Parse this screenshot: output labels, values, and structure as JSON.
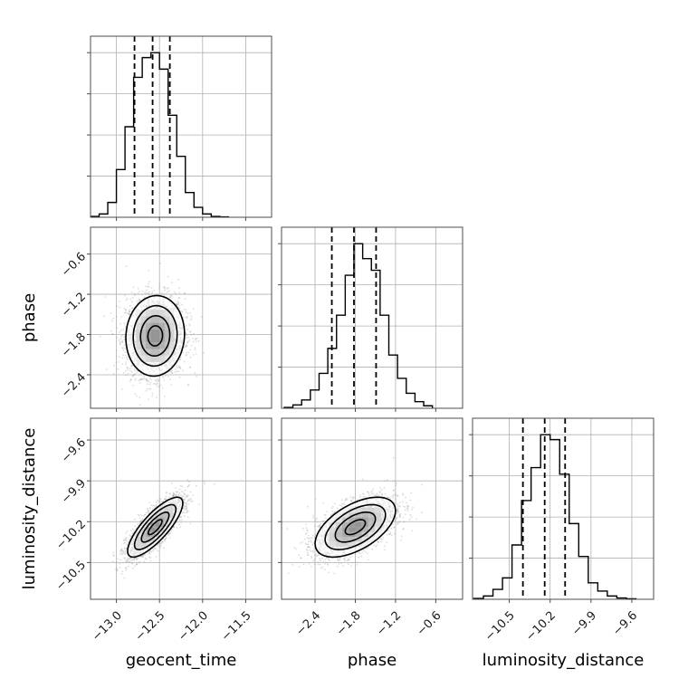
{
  "chart_data": {
    "type": "corner",
    "parameters": [
      {
        "key": "geocent_time",
        "label": "geocent_time",
        "range": [
          -13.3,
          -11.2
        ],
        "ticks": [
          -13.0,
          -12.5,
          -12.0,
          -11.5
        ],
        "tick_labels": [
          "−13.0",
          "−12.5",
          "−12.0",
          "−11.5"
        ],
        "quantiles": [
          -12.79,
          -12.58,
          -12.38
        ],
        "histogram": {
          "edges": [
            -13.3,
            -13.2,
            -13.1,
            -13.0,
            -12.9,
            -12.8,
            -12.7,
            -12.6,
            -12.5,
            -12.4,
            -12.3,
            -12.2,
            -12.1,
            -12.0,
            -11.9,
            -11.8,
            -11.7
          ],
          "counts": [
            0.005,
            0.02,
            0.09,
            0.29,
            0.55,
            0.85,
            0.97,
            1.0,
            0.9,
            0.62,
            0.37,
            0.15,
            0.06,
            0.02,
            0.005,
            0.002
          ]
        }
      },
      {
        "key": "phase",
        "label": "phase",
        "range": [
          -2.9,
          -0.2
        ],
        "ticks": [
          -2.4,
          -1.8,
          -1.2,
          -0.6
        ],
        "tick_labels": [
          "−2.4",
          "−1.8",
          "−1.2",
          "−0.6"
        ],
        "quantiles": [
          -2.15,
          -1.82,
          -1.49
        ],
        "histogram": {
          "edges": [
            -2.86,
            -2.73,
            -2.6,
            -2.47,
            -2.34,
            -2.21,
            -2.08,
            -1.95,
            -1.82,
            -1.69,
            -1.56,
            -1.43,
            -1.3,
            -1.17,
            -1.04,
            -0.91,
            -0.78,
            -0.65
          ],
          "counts": [
            0.005,
            0.02,
            0.05,
            0.11,
            0.21,
            0.36,
            0.56,
            0.8,
            0.99,
            0.9,
            0.83,
            0.56,
            0.32,
            0.18,
            0.09,
            0.04,
            0.015
          ]
        }
      },
      {
        "key": "luminosity_distance",
        "label": "luminosity_distance",
        "range": [
          -10.77,
          -9.44
        ],
        "ticks": [
          -10.5,
          -10.2,
          -9.9,
          -9.6
        ],
        "tick_labels": [
          "−10.5",
          "−10.2",
          "−9.9",
          "−9.6"
        ],
        "quantiles": [
          -10.4,
          -10.24,
          -10.09
        ],
        "histogram": {
          "edges": [
            -10.76,
            -10.69,
            -10.62,
            -10.55,
            -10.48,
            -10.41,
            -10.34,
            -10.27,
            -10.2,
            -10.13,
            -10.06,
            -9.99,
            -9.92,
            -9.85,
            -9.78,
            -9.71,
            -9.64,
            -9.57
          ],
          "counts": [
            0.005,
            0.02,
            0.06,
            0.13,
            0.33,
            0.6,
            0.8,
            1.0,
            0.97,
            0.76,
            0.46,
            0.26,
            0.1,
            0.05,
            0.02,
            0.008,
            0.003
          ]
        }
      }
    ],
    "pairs": [
      {
        "x": "geocent_time",
        "y": "phase",
        "center": [
          -12.55,
          -1.82
        ],
        "sigma": [
          0.17,
          0.3
        ],
        "correlation": 0.05
      },
      {
        "x": "geocent_time",
        "y": "luminosity_distance",
        "center": [
          -12.55,
          -10.24
        ],
        "sigma": [
          0.16,
          0.11
        ],
        "correlation": 0.8
      },
      {
        "x": "phase",
        "y": "luminosity_distance",
        "center": [
          -1.8,
          -10.24
        ],
        "sigma": [
          0.3,
          0.11
        ],
        "correlation": 0.55
      }
    ],
    "grid": true,
    "colors": {
      "line": "#000000",
      "grid": "#b0b0b0",
      "samples": "#9a9a9a",
      "frame": "#4d4d4d"
    }
  }
}
